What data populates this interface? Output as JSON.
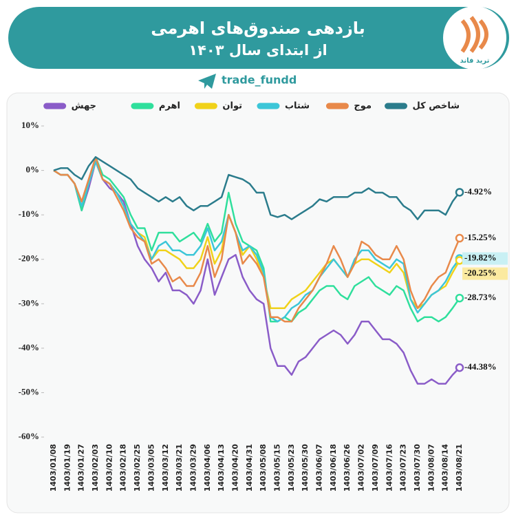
{
  "header": {
    "title": "بازدهی صندوق‌های اهرمی",
    "subtitle": "از ابتدای سال ۱۴۰۳",
    "handle": "trade_fundd",
    "logo_text": "ترید فاند"
  },
  "chart_data": {
    "type": "line",
    "categories": [
      "1403/01/08",
      null,
      "1403/01/19",
      null,
      "1403/01/27",
      null,
      "1403/02/03",
      null,
      "1403/02/10",
      null,
      "1403/02/18",
      null,
      "1403/02/25",
      null,
      "1403/03/05",
      null,
      "1403/03/12",
      null,
      "1403/03/21",
      null,
      "1403/03/29",
      null,
      "1403/04/06",
      null,
      "1403/04/13",
      null,
      "1403/04/20",
      null,
      "1403/04/31",
      null,
      "1403/05/08",
      null,
      "1403/05/15",
      null,
      "1403/05/23",
      null,
      "1403/05/30",
      null,
      "1403/06/07",
      null,
      "1403/06/18",
      null,
      "1403/06/26",
      null,
      "1403/07/02",
      null,
      "1403/07/09",
      null,
      "1403/07/16",
      null,
      "1403/07/23",
      null,
      "1403/07/30",
      null,
      "1403/08/07",
      null,
      "1403/08/14",
      null,
      "1403/08/21"
    ],
    "series": [
      {
        "name": "شاخص کل",
        "color": "#2b7c8c",
        "values": [
          0,
          0.5,
          0.5,
          -1,
          -2,
          1,
          3,
          2,
          1,
          0,
          -1,
          -2,
          -4,
          -5,
          -6,
          -7,
          -6,
          -7,
          -6,
          -8,
          -9,
          -8,
          -8,
          -7,
          -6,
          -1,
          -1.5,
          -2,
          -3,
          -5,
          -5,
          -10,
          -10.5,
          -10,
          -11,
          -10,
          -9,
          -8,
          -6.5,
          -7,
          -6,
          -6,
          -6,
          -5,
          -5,
          -4,
          -5,
          -5,
          -6,
          -6,
          -8,
          -9,
          -11,
          -9,
          -9,
          -9,
          -10,
          -7,
          -4.92
        ],
        "value_labels": [
          null,
          null,
          null,
          null,
          null,
          null,
          null,
          null,
          null,
          null,
          null,
          null,
          null,
          null,
          null,
          null,
          null,
          null,
          null,
          null,
          null,
          null,
          null,
          null,
          null,
          null,
          null,
          null,
          null,
          null,
          null,
          null,
          null,
          null,
          null,
          null,
          null,
          null,
          null,
          null,
          null,
          null,
          null,
          null,
          null,
          null,
          null,
          null,
          null,
          null,
          null,
          null,
          null,
          null,
          null,
          null,
          null,
          null,
          "-4.92%"
        ]
      },
      {
        "name": "موج",
        "color": "#e8894a",
        "values": [
          0,
          -1,
          -1,
          -3,
          -7,
          -2,
          3,
          -2,
          -3,
          -6,
          -9,
          -13,
          -15,
          -16,
          -21,
          -20,
          -22,
          -25,
          -24,
          -26,
          -26,
          -23,
          -17,
          -24,
          -20,
          -10,
          -14,
          -21,
          -19,
          -21,
          -24,
          -33,
          -33,
          -34,
          -34,
          -31,
          -29,
          -27,
          -24,
          -21,
          -17,
          -20,
          -24,
          -21,
          -16,
          -17,
          -19,
          -20,
          -20,
          -17,
          -20,
          -27,
          -31,
          -29,
          -26,
          -24,
          -23,
          -19,
          -15.25
        ],
        "value_labels": [
          null,
          null,
          null,
          null,
          null,
          null,
          null,
          null,
          null,
          null,
          null,
          null,
          null,
          null,
          null,
          null,
          null,
          null,
          null,
          null,
          null,
          null,
          null,
          null,
          null,
          null,
          null,
          null,
          null,
          null,
          null,
          null,
          null,
          null,
          null,
          null,
          null,
          null,
          null,
          null,
          null,
          null,
          null,
          null,
          null,
          null,
          null,
          null,
          null,
          null,
          null,
          null,
          null,
          null,
          null,
          null,
          null,
          null,
          "-15.25%"
        ]
      },
      {
        "name": "شتاب",
        "color": "#3cc6d8",
        "values": [
          0,
          -1,
          -1,
          -3,
          -8,
          -3,
          2,
          -2,
          -3,
          -5,
          -8,
          -12,
          -14,
          -16,
          -20,
          -17,
          -16,
          -18,
          -18,
          -19,
          -19,
          -17,
          -13,
          -18,
          -16,
          -10,
          -14,
          -18,
          -17,
          -19,
          -23,
          -33,
          -34,
          -33,
          -31,
          -30,
          -28,
          -27,
          -24,
          -22,
          -20,
          -22,
          -24,
          -20,
          -18,
          -18,
          -20,
          -21,
          -22,
          -20,
          -21,
          -29,
          -32,
          -30,
          -28,
          -27,
          -25,
          -22,
          -19.82
        ],
        "value_labels": [
          null,
          null,
          null,
          null,
          null,
          null,
          null,
          null,
          null,
          null,
          null,
          null,
          null,
          null,
          null,
          null,
          null,
          null,
          null,
          null,
          null,
          null,
          null,
          null,
          null,
          null,
          null,
          null,
          null,
          null,
          null,
          null,
          null,
          null,
          null,
          null,
          null,
          null,
          null,
          null,
          null,
          null,
          null,
          null,
          null,
          null,
          null,
          null,
          null,
          null,
          null,
          null,
          null,
          null,
          null,
          null,
          null,
          null,
          "-19.82%"
        ]
      },
      {
        "name": "توان",
        "color": "#f0d21a",
        "values": [
          0,
          -1,
          -1,
          -3,
          -7,
          -3,
          2,
          -2,
          -3,
          -5,
          -8,
          -12,
          -14,
          -15,
          -20,
          -18,
          -18,
          -19,
          -20,
          -22,
          -22,
          -20,
          -15,
          -21,
          -18,
          -10,
          -14,
          -19,
          -17,
          -20,
          -24,
          -31,
          -31,
          -31,
          -29,
          -28,
          -27,
          -25,
          -23,
          -21,
          -20,
          -22,
          -24,
          -21,
          -20,
          -20,
          -21,
          -22,
          -23,
          -21,
          -23,
          -29,
          -31,
          -30,
          -28,
          -27,
          -26,
          -23,
          -20.25
        ],
        "value_labels": [
          null,
          null,
          null,
          null,
          null,
          null,
          null,
          null,
          null,
          null,
          null,
          null,
          null,
          null,
          null,
          null,
          null,
          null,
          null,
          null,
          null,
          null,
          null,
          null,
          null,
          null,
          null,
          null,
          null,
          null,
          null,
          null,
          null,
          null,
          null,
          null,
          null,
          null,
          null,
          null,
          null,
          null,
          null,
          null,
          null,
          null,
          null,
          null,
          null,
          null,
          null,
          null,
          null,
          null,
          null,
          null,
          null,
          null,
          "-20.25%"
        ]
      },
      {
        "name": "اهرم",
        "color": "#2fdf9c",
        "values": [
          0,
          -1,
          -1,
          -3,
          -9,
          -3,
          3,
          -1,
          -2,
          -4,
          -6,
          -10,
          -13,
          -13,
          -18,
          -14,
          -14,
          -14,
          -16,
          -15,
          -14,
          -16,
          -12,
          -16,
          -14,
          -5,
          -12,
          -16,
          -17,
          -18,
          -22,
          -34,
          -34,
          -33,
          -34,
          -32,
          -31,
          -29,
          -27,
          -26,
          -26,
          -28,
          -29,
          -26,
          -25,
          -24,
          -26,
          -27,
          -28,
          -26,
          -27,
          -31,
          -34,
          -33,
          -33,
          -34,
          -33,
          -31,
          -28.73
        ],
        "value_labels": [
          null,
          null,
          null,
          null,
          null,
          null,
          null,
          null,
          null,
          null,
          null,
          null,
          null,
          null,
          null,
          null,
          null,
          null,
          null,
          null,
          null,
          null,
          null,
          null,
          null,
          null,
          null,
          null,
          null,
          null,
          null,
          null,
          null,
          null,
          null,
          null,
          null,
          null,
          null,
          null,
          null,
          null,
          null,
          null,
          null,
          null,
          null,
          null,
          null,
          null,
          null,
          null,
          null,
          null,
          null,
          null,
          null,
          null,
          "-28.73%"
        ]
      },
      {
        "name": "جهش",
        "color": "#8a5cc8",
        "values": [
          0,
          -1,
          -1,
          -3,
          -9,
          -4,
          2,
          -2,
          -4,
          -5,
          -7,
          -12,
          -17,
          -20,
          -22,
          -25,
          -23,
          -27,
          -27,
          -28,
          -30,
          -27,
          -20,
          -28,
          -24,
          -20,
          -19,
          -24,
          -27,
          -29,
          -30,
          -40,
          -44,
          -44,
          -46,
          -43,
          -42,
          -40,
          -38,
          -37,
          -36,
          -37,
          -39,
          -37,
          -34,
          -34,
          -36,
          -38,
          -38,
          -39,
          -41,
          -45,
          -48,
          -48,
          -47,
          -48,
          -48,
          -46,
          -44.38
        ],
        "value_labels": [
          null,
          null,
          null,
          null,
          null,
          null,
          null,
          null,
          null,
          null,
          null,
          null,
          null,
          null,
          null,
          null,
          null,
          null,
          null,
          null,
          null,
          null,
          null,
          null,
          null,
          null,
          null,
          null,
          null,
          null,
          null,
          null,
          null,
          null,
          null,
          null,
          null,
          null,
          null,
          null,
          null,
          null,
          null,
          null,
          null,
          null,
          null,
          null,
          null,
          null,
          null,
          null,
          null,
          null,
          null,
          null,
          null,
          null,
          "-44.38%"
        ]
      }
    ],
    "ylim": [
      -60,
      10
    ],
    "yticks": [
      {
        "value": 10,
        "label": "10%"
      },
      {
        "value": 0,
        "label": "0%"
      },
      {
        "value": -10,
        "label": "-10%"
      },
      {
        "value": -20,
        "label": "-20%"
      },
      {
        "value": -30,
        "label": "-30%"
      },
      {
        "value": -40,
        "label": "-40%"
      },
      {
        "value": -50,
        "label": "-50%"
      },
      {
        "value": -60,
        "label": "-60%"
      }
    ],
    "grid": false
  }
}
